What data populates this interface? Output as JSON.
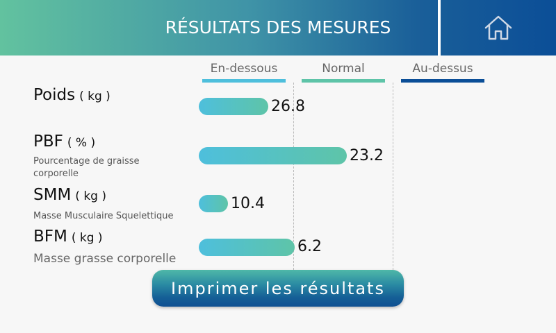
{
  "header": {
    "title": "RÉSULTATS DES MESURES",
    "home_icon": "home-icon"
  },
  "columns": [
    {
      "label": "En-dessous",
      "color": "#4ebfdc"
    },
    {
      "label": "Normal",
      "color": "#5ec4a8"
    },
    {
      "label": "Au-dessus",
      "color": "#0b4e97"
    }
  ],
  "rows": [
    {
      "name": "Poids",
      "unit": "( kg )",
      "subtitle": "",
      "value": "26.8"
    },
    {
      "name": "PBF",
      "unit": "( % )",
      "subtitle": "Pourcentage de graisse corporelle",
      "value": "23.2"
    },
    {
      "name": "SMM",
      "unit": "( kg )",
      "subtitle": "Masse Musculaire Squelettique",
      "value": "10.4"
    },
    {
      "name": "BFM",
      "unit": "( kg )",
      "subtitle": "Masse grasse corporelle",
      "value": "6.2"
    }
  ],
  "print_button": {
    "label": "Imprimer les résultats"
  }
}
